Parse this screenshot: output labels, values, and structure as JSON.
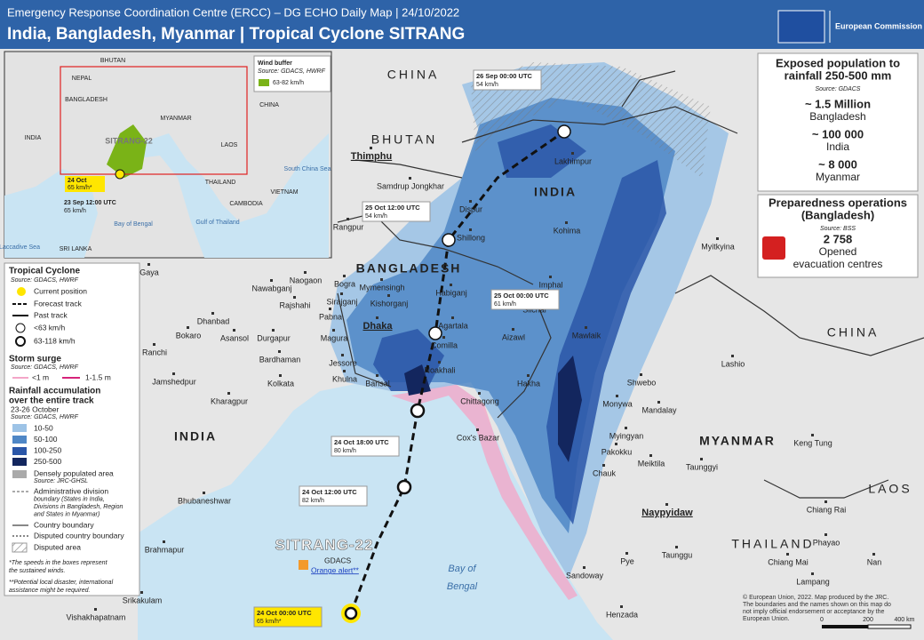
{
  "header": {
    "subtitle": "Emergency Response Coordination Centre (ERCC) – DG ECHO Daily Map | 24/10/2022",
    "title": "India, Bangladesh, Myanmar | Tropical Cyclone SITRANG",
    "logo": "European Commission"
  },
  "exposed": {
    "title": [
      "Exposed population to",
      "rainfall 250-500 mm"
    ],
    "source": "Source: GDACS",
    "items": [
      {
        "value": "~ 1.5 Million",
        "country": "Bangladesh"
      },
      {
        "value": "~ 100 000",
        "country": "India"
      },
      {
        "value": "~ 8 000",
        "country": "Myanmar"
      }
    ]
  },
  "preparedness": {
    "title": [
      "Preparedness operations",
      "(Bangladesh)"
    ],
    "source": "Source: BSS",
    "value": "2 758",
    "label": [
      "Opened",
      "evacuation centres"
    ]
  },
  "legend": {
    "cyclone": "Tropical Cyclone",
    "cyclone_source": "Source: GDACS, HWRF",
    "current": "Current position",
    "forecast": "Forecast track",
    "past": "Past track",
    "low": "<63 km/h",
    "high": "63-118 km/h",
    "surge": "Storm surge",
    "surge_source": "Source: GDACS, HWRF",
    "surge_low": "<1 m",
    "surge_high": "1-1.5 m",
    "rain": [
      "Rainfall accumulation",
      "over the entire track"
    ],
    "rain_period": "23-26 October",
    "rain_source": "Source: GDACS, HWRF",
    "rain_classes": [
      "10-50",
      "50-100",
      "100-250",
      "250-500"
    ],
    "populated": "Densely populated area",
    "populated_source": "Source: JRC-GHSL",
    "admin": [
      "Administrative division",
      "boundary (States in India,",
      "Divisions in Bangladesh, Region",
      "and States in Myanmar)"
    ],
    "country": "Country boundary",
    "disputed_boundary": "Disputed country boundary",
    "disputed_area": "Disputed area",
    "notes": [
      "*The speeds in the boxes represent",
      "the sustained winds.",
      "**Potential local disaster, international",
      "assistance might be required."
    ]
  },
  "inset": {
    "title": "Wind buffer",
    "source": "Source: GDACS, HWRF",
    "wind": "63-82 km/h",
    "labels": [
      "BHUTAN",
      "NEPAL",
      "BANGLADESH",
      "MYANMAR",
      "INDIA",
      "CHINA",
      "SITRANG-22",
      "LAOS",
      "THAILAND",
      "VIETNAM",
      "CAMBODIA",
      "South China Sea",
      "Gulf of Thailand",
      "Bay of Bengal",
      "SRI LANKA",
      "Laccadive Sea"
    ],
    "track": [
      {
        "time": "24 Oct",
        "speed": "65 km/h*"
      },
      {
        "time": "23 Sep 12:00 UTC",
        "speed": "65 km/h"
      }
    ]
  },
  "track_labels": [
    {
      "time": "26 Sep 00:00 UTC",
      "speed": "54 km/h"
    },
    {
      "time": "25 Oct 12:00 UTC",
      "speed": "54 km/h"
    },
    {
      "time": "25 Oct 00:00 UTC",
      "speed": "61 km/h"
    },
    {
      "time": "24 Oct 18:00 UTC",
      "speed": "80 km/h"
    },
    {
      "time": "24 Oct 12:00 UTC",
      "speed": "82 km/h"
    },
    {
      "time": "24 Oct 00:00 UTC",
      "speed": "65 km/h*"
    }
  ],
  "storm": {
    "name": "SITRANG-22",
    "source": "GDACS",
    "alert": "Orange alert**"
  },
  "countries": [
    "CHINA",
    "BHUTAN",
    "INDIA",
    "BANGLADESH",
    "MYANMAR",
    "CHINA",
    "LAOS",
    "THAILAND",
    "INDIA"
  ],
  "cities": [
    "Thimphu",
    "Lakhimpur",
    "Samdrup Jongkhar",
    "Dispur",
    "Shillong",
    "Kohima",
    "Imphal",
    "Myitkyina",
    "Rangpur",
    "Gaya",
    "Naogaon",
    "Bogra",
    "Nawabganj",
    "Mymensingh",
    "Rajshahi",
    "Sirajganj",
    "Kishorganj",
    "Habiganj",
    "Silchar",
    "Pabna",
    "Dhaka",
    "Agartala",
    "Aizawl",
    "Comilla",
    "Magura",
    "Noakhali",
    "Jessore",
    "Khulna",
    "Barisal",
    "Kolkata",
    "Chittagong",
    "Hakha",
    "Mawlaik",
    "Lashio",
    "Shwebo",
    "Monywa",
    "Mandalay",
    "Kharagpur",
    "Jamshedpur",
    "Ranchi",
    "Bardhaman",
    "Durgapur",
    "Asansol",
    "Bokaro",
    "Dhanbad",
    "Cox's Bazar",
    "Myingyan",
    "Pakokku",
    "Meiktila",
    "Taunggyi",
    "Keng Tung",
    "Chauk",
    "Naypyidaw",
    "Chiang Rai",
    "Phayao",
    "Chiang Mai",
    "Nan",
    "Lampang",
    "Taunggu",
    "Pye",
    "Sandoway",
    "Henzada",
    "Bhubaneshwar",
    "Brahmapur",
    "Srikakulam",
    "Vishakhapatnam"
  ],
  "water": [
    "Bay of",
    "Bengal"
  ],
  "scale": [
    "0",
    "200",
    "400 km"
  ],
  "copyright": [
    "© European Union, 2022. Map produced by the JRC.",
    "The boundaries and the names shown on this map do",
    "not imply official endorsement or acceptance by the",
    "European Union."
  ]
}
